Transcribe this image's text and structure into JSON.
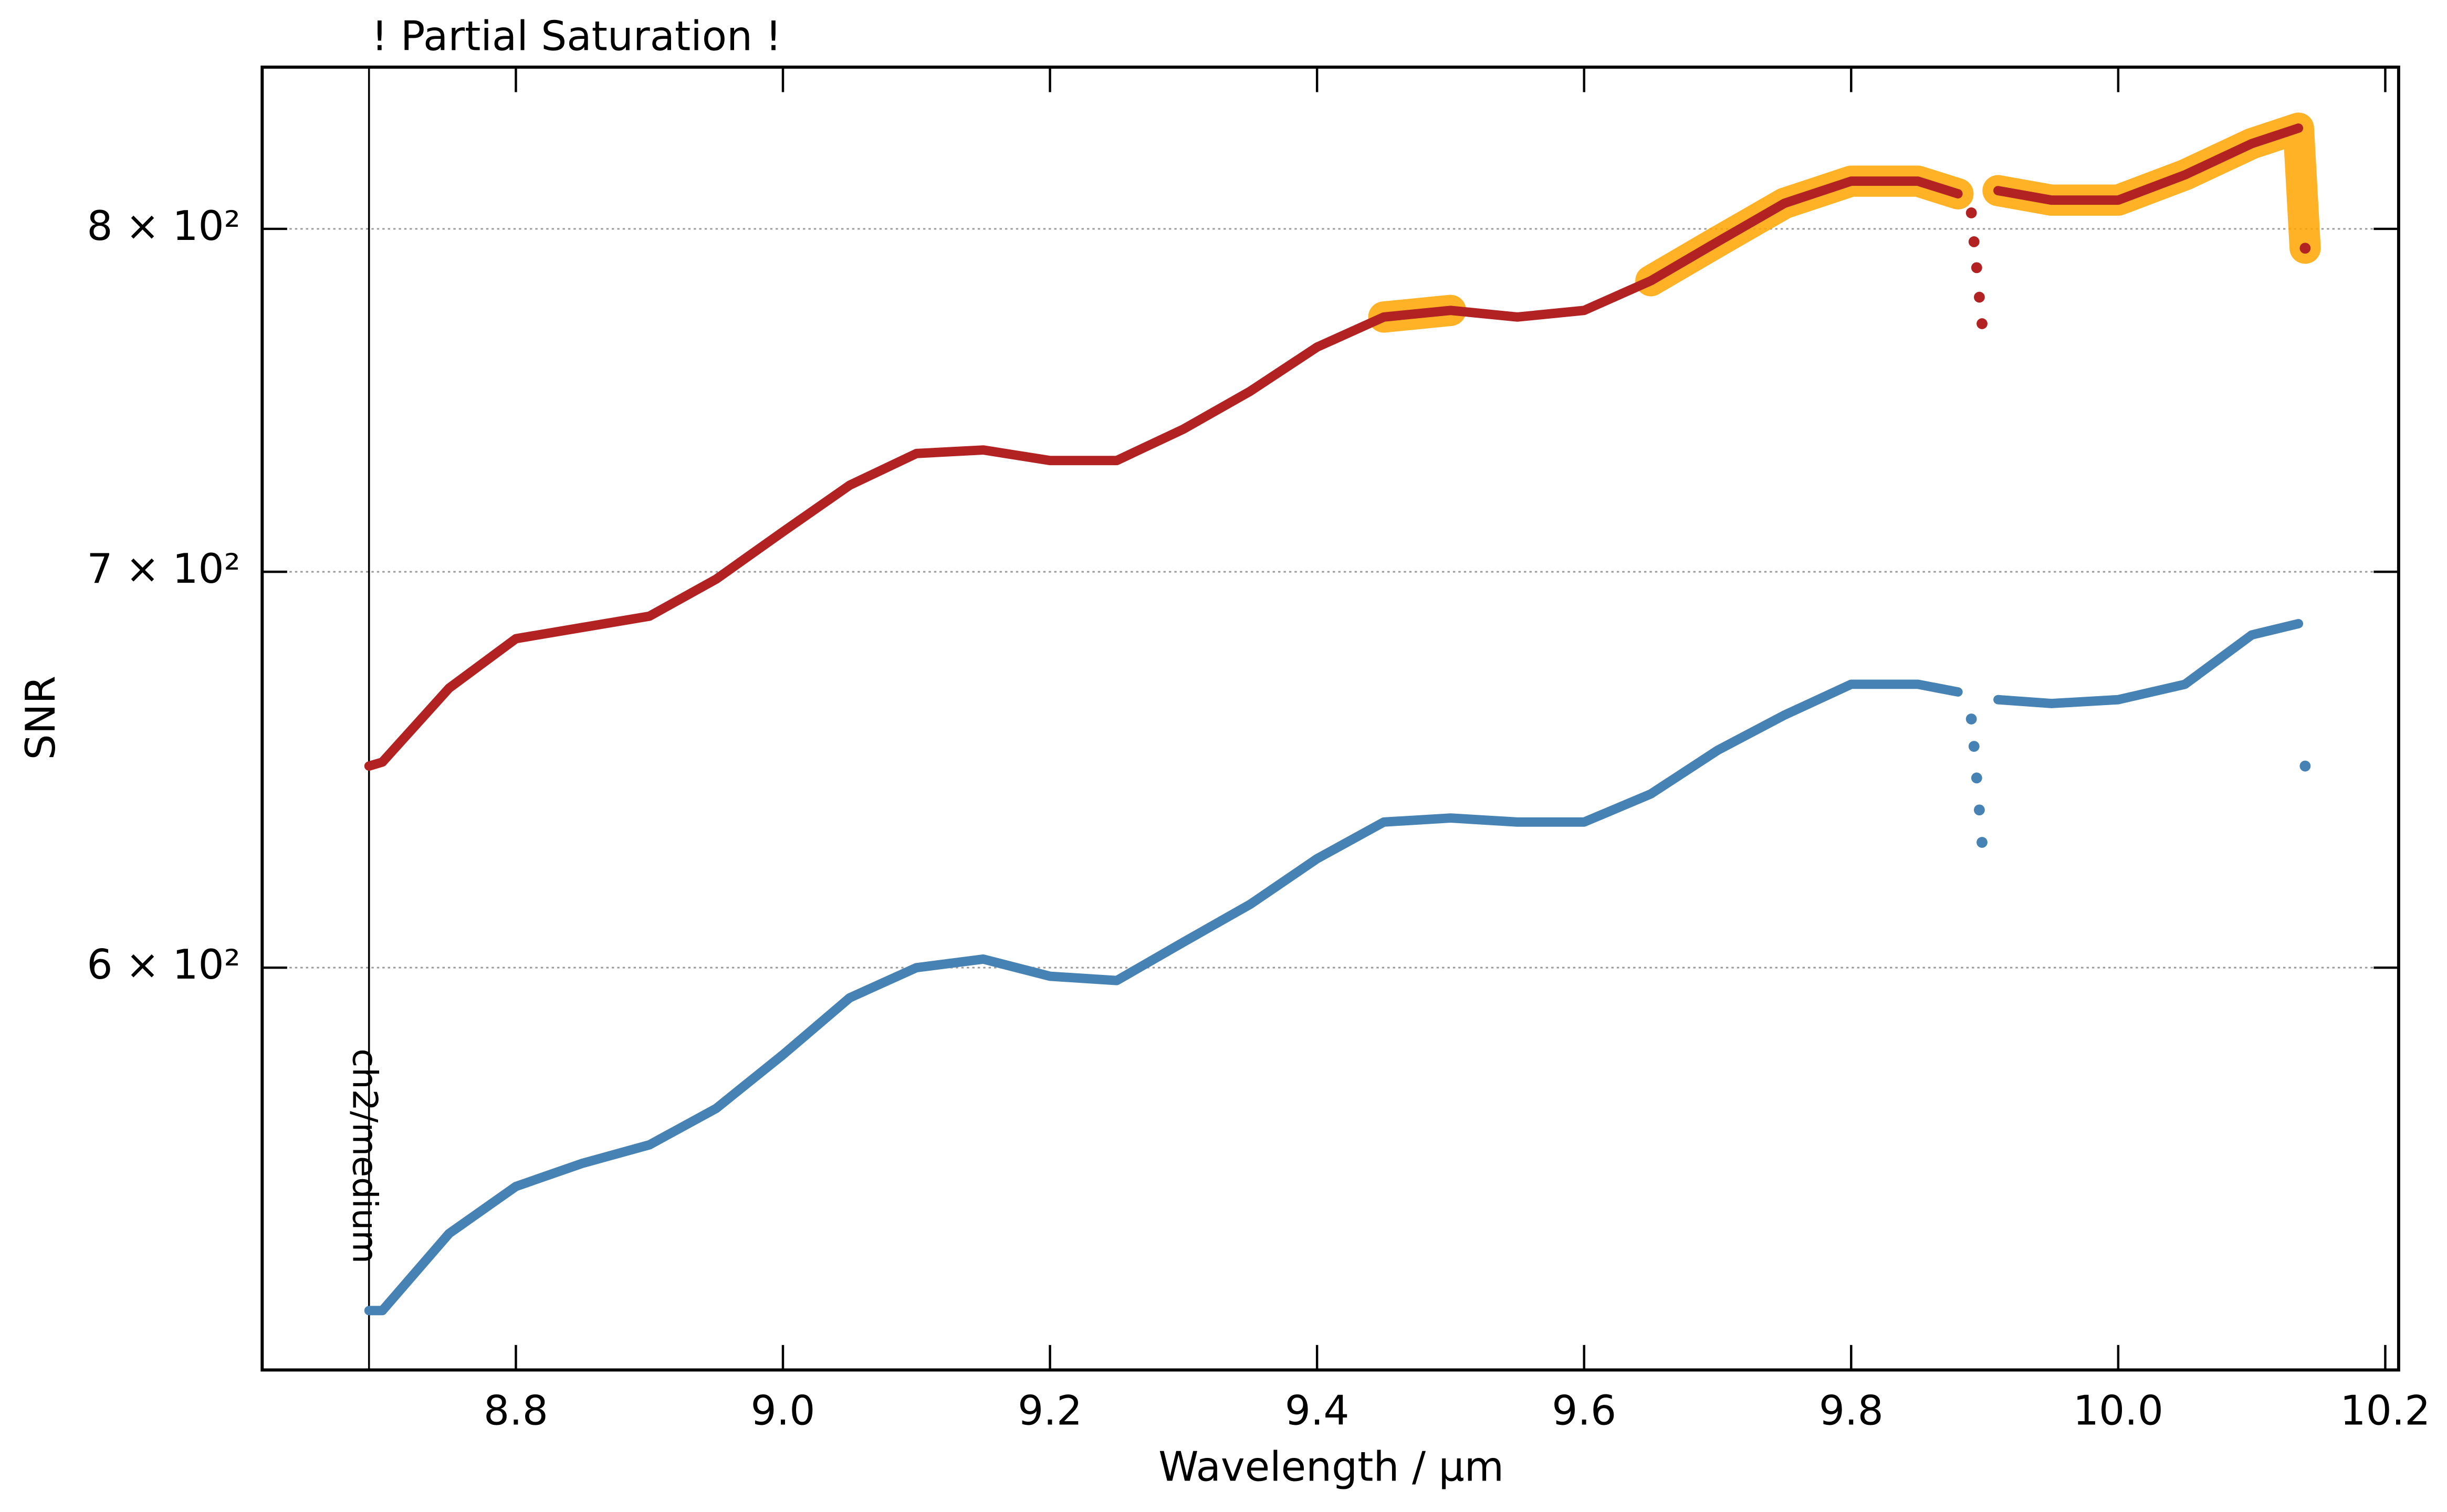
{
  "chart_data": {
    "type": "line",
    "annotation": "! Partial Saturation !",
    "annotation_color": "#ffa500",
    "xlabel": "Wavelength / μm",
    "ylabel": "SNR",
    "xlim": [
      8.61,
      10.21
    ],
    "ylim": [
      513,
      852
    ],
    "log_y": true,
    "xticks": [
      8.8,
      {
        "value": 9,
        "label": "9.0"
      },
      9.2,
      9.4,
      9.6,
      9.8,
      {
        "value": 10,
        "label": "10.0"
      },
      10.2
    ],
    "yticks": [
      {
        "value": 600,
        "label": "6 × 10²"
      },
      {
        "value": 700,
        "label": "7 × 10²"
      },
      {
        "value": 800,
        "label": "8 × 10²"
      }
    ],
    "grid": true,
    "markers": [
      {
        "x": 8.69,
        "label": "ch2/medium"
      }
    ],
    "saturated_color": "#ffa500",
    "saturated_ranges": [
      [
        9.42,
        9.53
      ],
      [
        9.64,
        9.88
      ],
      [
        9.91,
        10.14
      ]
    ],
    "series": [
      {
        "color": "#b22222",
        "x": [
          8.69,
          8.7,
          8.75,
          8.8,
          8.85,
          8.9,
          8.95,
          9.0,
          9.05,
          9.1,
          9.15,
          9.2,
          9.25,
          9.3,
          9.35,
          9.4,
          9.45,
          9.5,
          9.55,
          9.6,
          9.65,
          9.7,
          9.75,
          9.8,
          9.85,
          9.88,
          null,
          9.89,
          null,
          9.892,
          null,
          9.894,
          null,
          9.896,
          null,
          9.898,
          null,
          9.91,
          9.95,
          10.0,
          10.05,
          10.1,
          10.135,
          null,
          10.14
        ],
        "values": [
          649,
          650,
          669,
          682,
          685,
          688,
          698,
          711,
          724,
          733,
          734,
          731,
          731,
          740,
          751,
          764,
          773,
          775,
          773,
          775,
          784,
          796,
          808,
          815,
          815,
          811,
          null,
          805,
          null,
          796,
          null,
          788,
          null,
          779,
          null,
          771,
          null,
          812,
          809,
          809,
          817,
          827,
          832,
          null,
          794
        ]
      },
      {
        "color": "#4682b4",
        "x": [
          8.69,
          8.7,
          8.75,
          8.8,
          8.85,
          8.9,
          8.95,
          9.0,
          9.05,
          9.1,
          9.15,
          9.2,
          9.25,
          9.3,
          9.35,
          9.4,
          9.45,
          9.5,
          9.55,
          9.6,
          9.65,
          9.7,
          9.75,
          9.8,
          9.85,
          9.88,
          null,
          9.89,
          null,
          9.892,
          null,
          9.894,
          null,
          9.896,
          null,
          9.898,
          null,
          9.91,
          9.95,
          10.0,
          10.05,
          10.1,
          10.135,
          null,
          10.14
        ],
        "values": [
          525,
          525,
          541,
          551,
          556,
          560,
          568,
          580,
          593,
          600,
          602,
          598,
          597,
          606,
          615,
          626,
          635,
          636,
          635,
          635,
          642,
          653,
          662,
          670,
          670,
          668,
          null,
          661,
          null,
          654,
          null,
          646,
          null,
          638,
          null,
          630,
          null,
          666,
          665,
          666,
          670,
          683,
          686,
          null,
          649
        ]
      }
    ]
  }
}
